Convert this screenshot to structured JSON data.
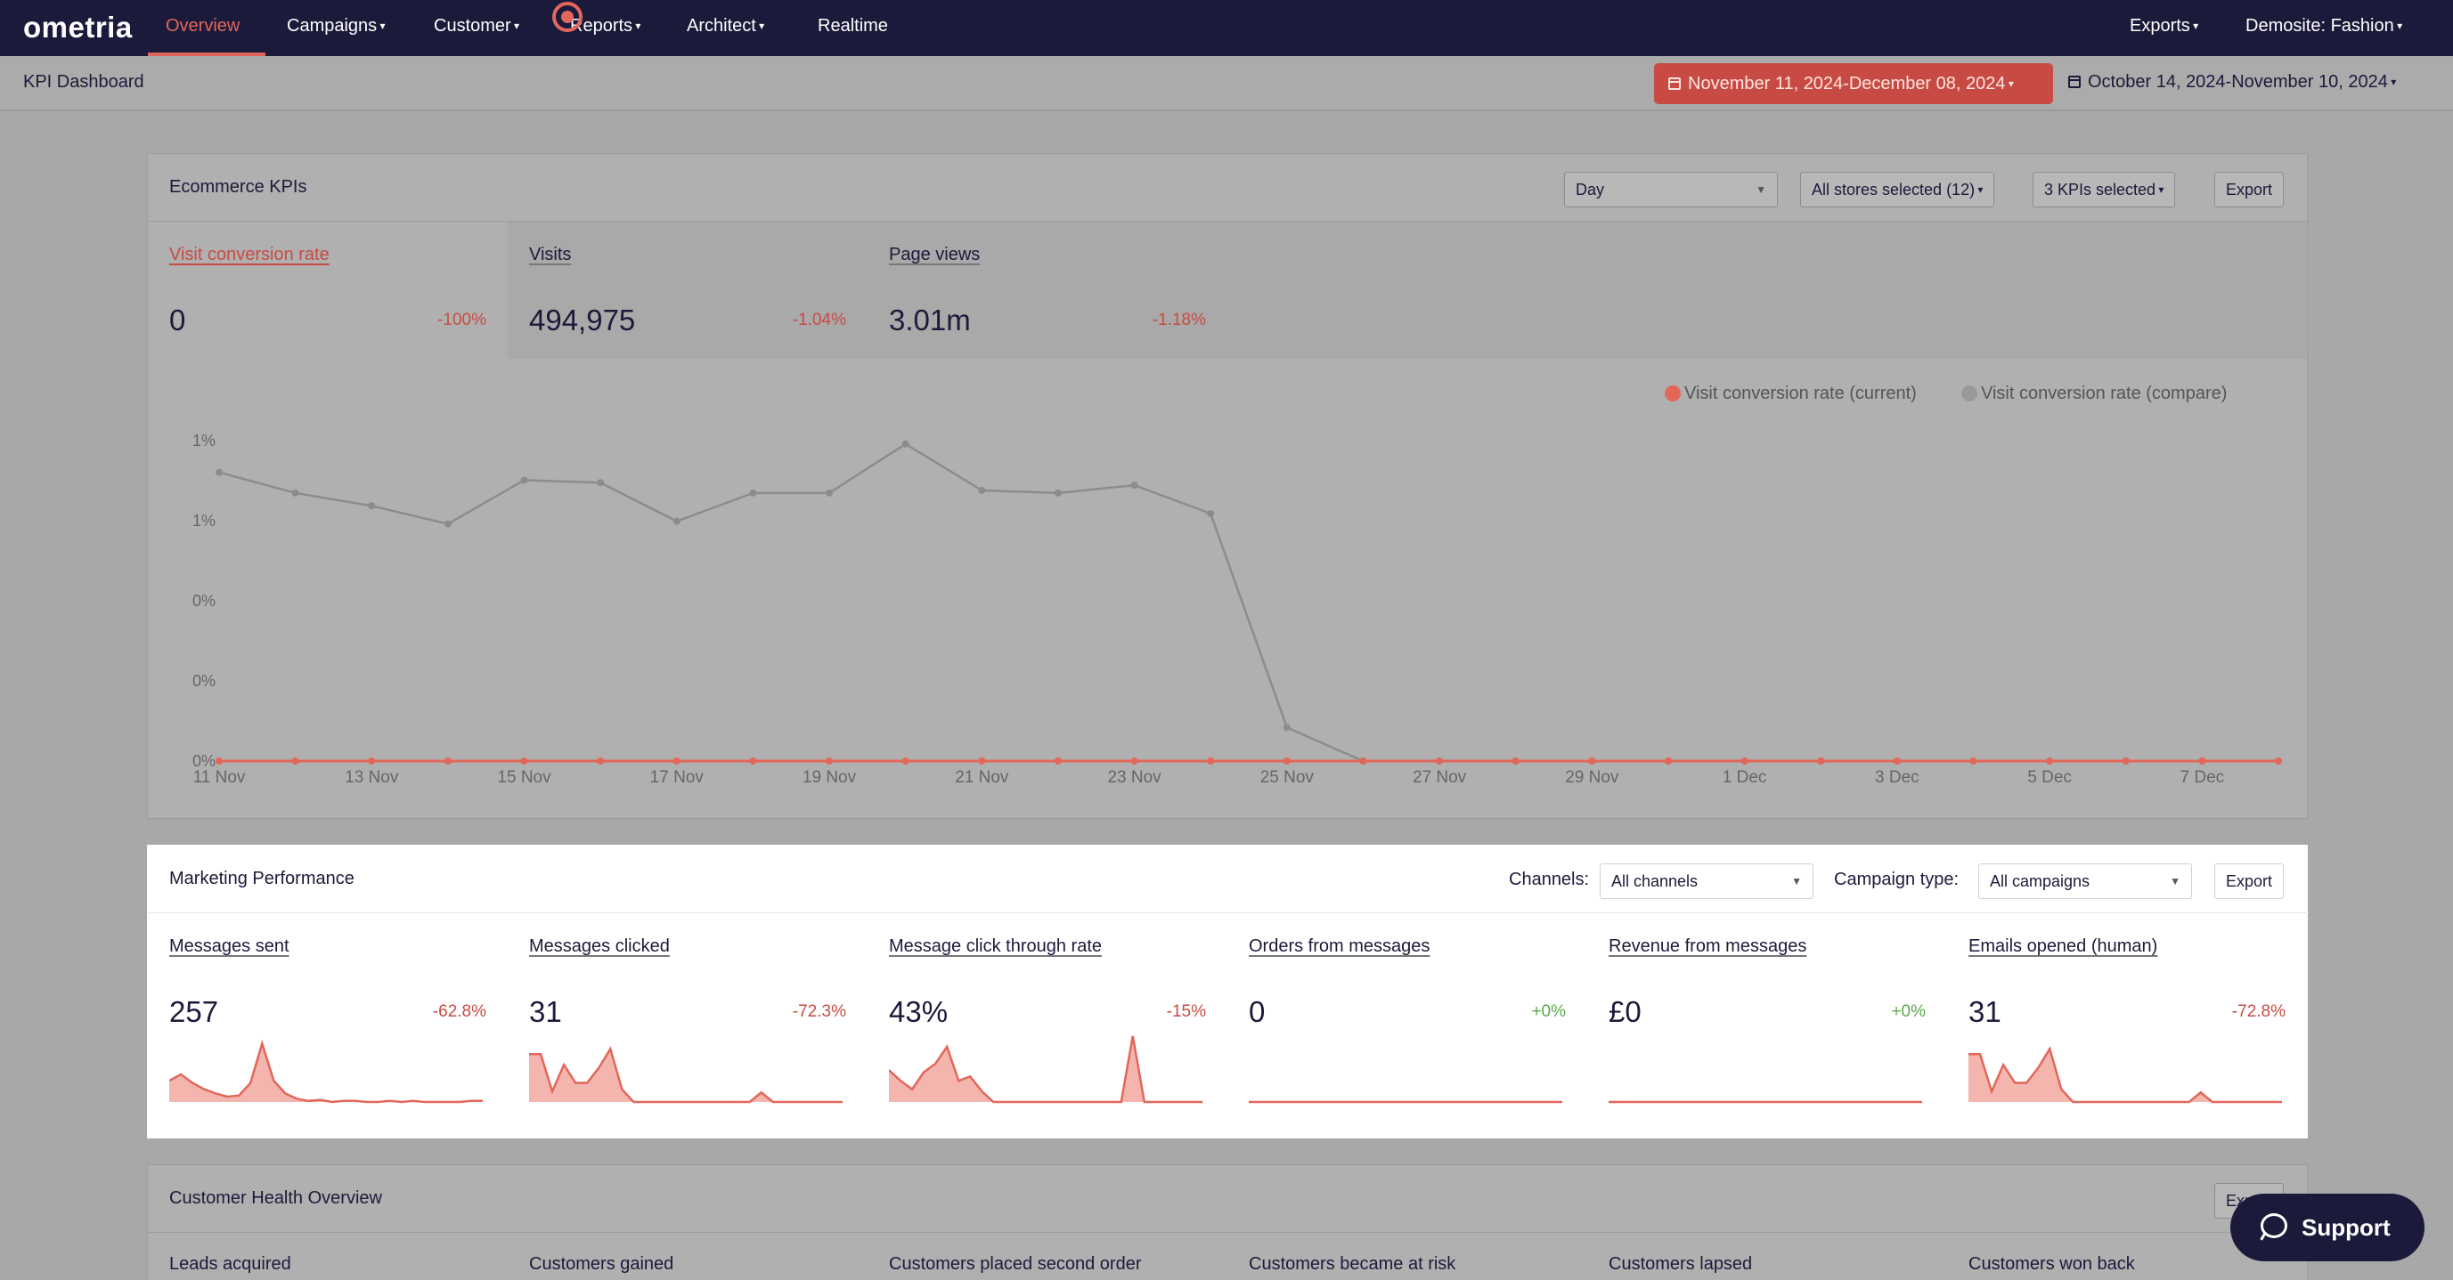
{
  "brand": {
    "logo": "ometria",
    "accent": "#e2675a",
    "navy": "#1c1a3a"
  },
  "nav": {
    "items": [
      {
        "label": "Overview",
        "active": true
      },
      {
        "label": "Campaigns",
        "dropdown": true
      },
      {
        "label": "Customer",
        "dropdown": true
      },
      {
        "label": "Reports",
        "dropdown": true
      },
      {
        "label": "Architect",
        "dropdown": true
      },
      {
        "label": "Realtime",
        "dropdown": false
      }
    ],
    "exports": "Exports",
    "account": "Demosite: Fashion"
  },
  "header": {
    "title": "KPI Dashboard",
    "date_current": "November 11, 2024-December 08, 2024",
    "date_compare": "October 14, 2024-November 10, 2024"
  },
  "ecommerce": {
    "title": "Ecommerce KPIs",
    "granularity": "Day",
    "stores": "All stores selected (12)",
    "kpis_selected": "3 KPIs selected",
    "export": "Export",
    "tiles": [
      {
        "label": "Visit conversion rate",
        "value": "0",
        "delta": "-100%"
      },
      {
        "label": "Visits",
        "value": "494,975",
        "delta": "-1.04%"
      },
      {
        "label": "Page views",
        "value": "3.01m",
        "delta": "-1.18%"
      }
    ],
    "legend_current": "Visit conversion rate (current)",
    "legend_compare": "Visit conversion rate (compare)",
    "colors": {
      "current": "#e2675a",
      "compare": "#8c8c8c"
    }
  },
  "chart_data": {
    "type": "line",
    "x": [
      "11 Nov",
      "12 Nov",
      "13 Nov",
      "14 Nov",
      "15 Nov",
      "16 Nov",
      "17 Nov",
      "18 Nov",
      "19 Nov",
      "20 Nov",
      "21 Nov",
      "22 Nov",
      "23 Nov",
      "24 Nov",
      "25 Nov",
      "26 Nov",
      "27 Nov",
      "28 Nov",
      "29 Nov",
      "30 Nov",
      "1 Dec",
      "2 Dec",
      "3 Dec",
      "4 Dec",
      "5 Dec",
      "6 Dec",
      "7 Dec",
      "8 Dec"
    ],
    "x_tick_labels": [
      "11 Nov",
      "13 Nov",
      "15 Nov",
      "17 Nov",
      "19 Nov",
      "21 Nov",
      "23 Nov",
      "25 Nov",
      "27 Nov",
      "29 Nov",
      "1 Dec",
      "3 Dec",
      "5 Dec",
      "7 Dec"
    ],
    "y_tick_labels": [
      "1%",
      "1%",
      "0%",
      "0%",
      "0%"
    ],
    "ylim": [
      0,
      1.25
    ],
    "series": [
      {
        "name": "Visit conversion rate (current)",
        "values": [
          0,
          0,
          0,
          0,
          0,
          0,
          0,
          0,
          0,
          0,
          0,
          0,
          0,
          0,
          0,
          0,
          0,
          0,
          0,
          0,
          0,
          0,
          0,
          0,
          0,
          0,
          0,
          0
        ]
      },
      {
        "name": "Visit conversion rate (compare)",
        "values": [
          1.12,
          1.04,
          0.99,
          0.92,
          1.09,
          1.08,
          0.93,
          1.04,
          1.04,
          1.23,
          1.05,
          1.04,
          1.07,
          0.96,
          0.13,
          0,
          0,
          0,
          0,
          0,
          0,
          0,
          0,
          0,
          0,
          0,
          0,
          0
        ]
      }
    ],
    "grid": false,
    "legend": "top-right"
  },
  "marketing": {
    "title": "Marketing Performance",
    "channels_label": "Channels:",
    "channels_value": "All channels",
    "campaign_label": "Campaign type:",
    "campaign_value": "All campaigns",
    "export": "Export",
    "tiles": [
      {
        "label": "Messages sent",
        "value": "257",
        "delta": "-62.8%",
        "positive": false,
        "spark": [
          20,
          26,
          18,
          12,
          8,
          5,
          6,
          18,
          55,
          20,
          8,
          3,
          1,
          2,
          0,
          1,
          1,
          0,
          0,
          1,
          0,
          1,
          0,
          0,
          0,
          0,
          1,
          1
        ]
      },
      {
        "label": "Messages clicked",
        "value": "31",
        "delta": "-72.3%",
        "positive": false,
        "spark": [
          45,
          45,
          10,
          35,
          18,
          18,
          32,
          50,
          12,
          0,
          0,
          0,
          0,
          0,
          0,
          0,
          0,
          0,
          0,
          0,
          9,
          0,
          0,
          0,
          0,
          0,
          0,
          0
        ]
      },
      {
        "label": "Message click through rate",
        "value": "43%",
        "delta": "-15%",
        "positive": false,
        "spark": [
          30,
          20,
          12,
          28,
          36,
          52,
          20,
          24,
          10,
          0,
          0,
          0,
          0,
          0,
          0,
          0,
          0,
          0,
          0,
          0,
          0,
          62,
          0,
          0,
          0,
          0,
          0,
          0
        ]
      },
      {
        "label": "Orders from messages",
        "value": "0",
        "delta": "+0%",
        "positive": true,
        "spark": [
          0,
          0,
          0,
          0,
          0,
          0,
          0,
          0,
          0,
          0,
          0,
          0,
          0,
          0,
          0,
          0,
          0,
          0,
          0,
          0,
          0,
          0,
          0,
          0,
          0,
          0,
          0,
          0
        ]
      },
      {
        "label": "Revenue from messages",
        "value": "£0",
        "delta": "+0%",
        "positive": true,
        "spark": [
          0,
          0,
          0,
          0,
          0,
          0,
          0,
          0,
          0,
          0,
          0,
          0,
          0,
          0,
          0,
          0,
          0,
          0,
          0,
          0,
          0,
          0,
          0,
          0,
          0,
          0,
          0,
          0
        ]
      },
      {
        "label": "Emails opened (human)",
        "value": "31",
        "delta": "-72.8%",
        "positive": false,
        "spark": [
          45,
          45,
          10,
          35,
          18,
          18,
          32,
          50,
          12,
          0,
          0,
          0,
          0,
          0,
          0,
          0,
          0,
          0,
          0,
          0,
          9,
          0,
          0,
          0,
          0,
          0,
          0,
          0
        ]
      }
    ]
  },
  "health": {
    "title": "Customer Health Overview",
    "export": "Export",
    "tiles": [
      "Leads acquired",
      "Customers gained",
      "Customers placed second order",
      "Customers became at risk",
      "Customers lapsed",
      "Customers won back"
    ]
  },
  "support": {
    "label": "Support"
  }
}
